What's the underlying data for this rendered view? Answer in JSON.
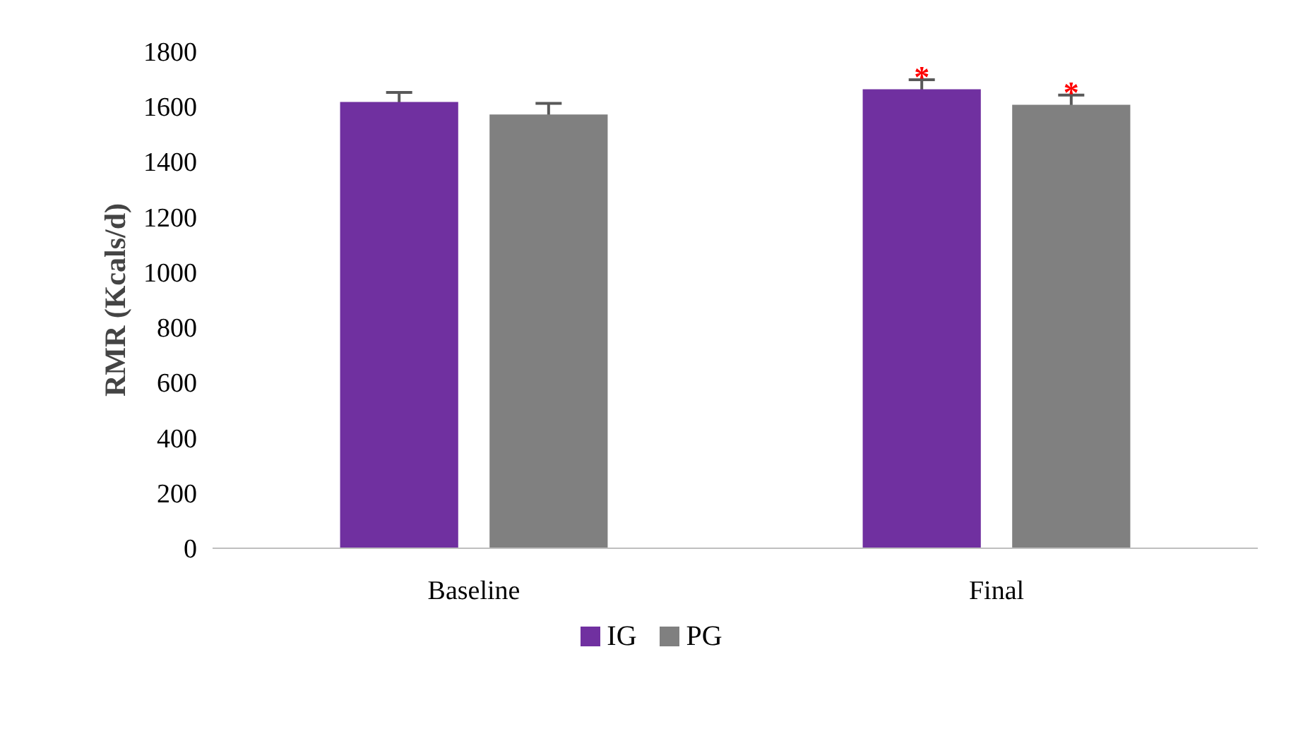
{
  "chart_data": {
    "type": "bar",
    "ylabel": "RMR (Kcals/d)",
    "categories": [
      "Baseline",
      "Final"
    ],
    "series": [
      {
        "name": "IG",
        "color": "#7030a0",
        "values": [
          1617,
          1663
        ],
        "errors": [
          35,
          35
        ]
      },
      {
        "name": "PG",
        "color": "#808080",
        "values": [
          1572,
          1607
        ],
        "errors": [
          40,
          35
        ]
      }
    ],
    "ylim": [
      0,
      1800
    ],
    "yticks": [
      0,
      200,
      400,
      600,
      800,
      1000,
      1200,
      1400,
      1600,
      1800
    ],
    "grid": false,
    "legend": "bottom",
    "annotations": [
      "*",
      "*"
    ]
  }
}
